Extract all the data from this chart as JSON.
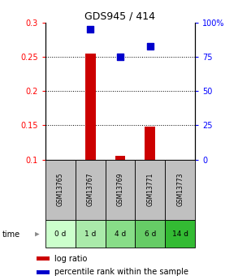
{
  "title": "GDS945 / 414",
  "samples": [
    "GSM13765",
    "GSM13767",
    "GSM13769",
    "GSM13771",
    "GSM13773"
  ],
  "time_labels": [
    "0 d",
    "1 d",
    "4 d",
    "6 d",
    "14 d"
  ],
  "log_ratio": [
    0.0,
    0.255,
    0.105,
    0.148,
    0.0
  ],
  "percentile_rank_right": [
    0.0,
    95.0,
    75.0,
    82.5,
    0.0
  ],
  "ylim_left": [
    0.1,
    0.3
  ],
  "ylim_right": [
    0,
    100
  ],
  "yticks_left": [
    0.1,
    0.15,
    0.2,
    0.25,
    0.3
  ],
  "yticks_right": [
    0,
    25,
    50,
    75,
    100
  ],
  "ytick_labels_left": [
    "0.1",
    "0.15",
    "0.2",
    "0.25",
    "0.3"
  ],
  "ytick_labels_right": [
    "0",
    "25",
    "50",
    "75",
    "100%"
  ],
  "bar_color": "#cc0000",
  "dot_color": "#0000cc",
  "sample_bg_color": "#c0c0c0",
  "time_bg_colors": [
    "#ccffcc",
    "#aaeaaa",
    "#88dd88",
    "#66cc66",
    "#33bb33"
  ],
  "bar_width": 0.35,
  "dot_size": 30,
  "legend_bar_label": "log ratio",
  "legend_dot_label": "percentile rank within the sample"
}
